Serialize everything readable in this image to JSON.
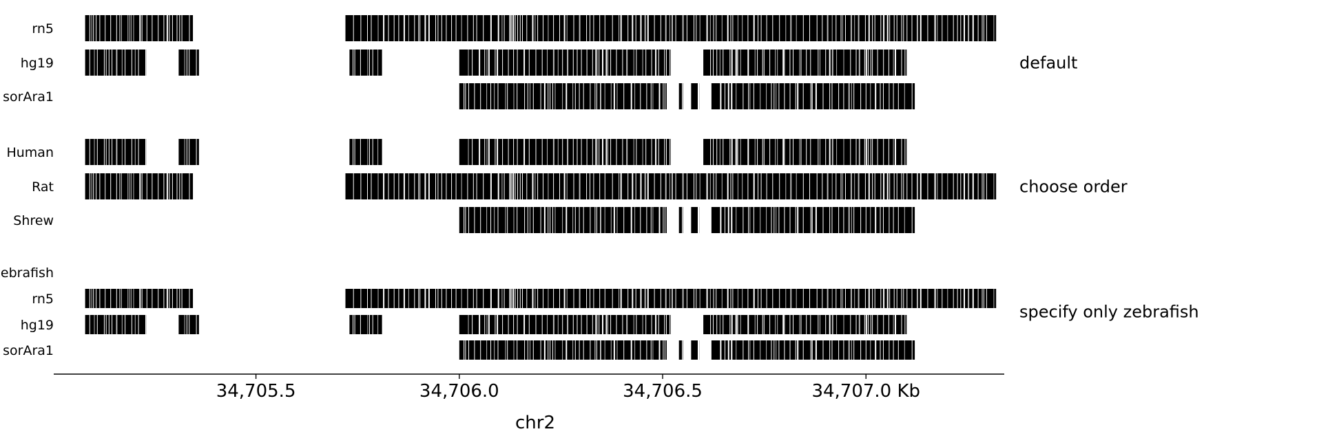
{
  "chart_data": {
    "type": "genome-alignment-tracks",
    "xlabel": "chr2",
    "x_unit": "Kb",
    "xlim": [
      34705.04,
      34707.34
    ],
    "ticks": [
      {
        "value": 34705.5,
        "label": "34,705.5"
      },
      {
        "value": 34706.0,
        "label": "34,706.0"
      },
      {
        "value": 34706.5,
        "label": "34,706.5"
      },
      {
        "value": 34707.0,
        "label": "34,707.0 Kb"
      }
    ],
    "panels": [
      {
        "title": "default",
        "tracks": [
          {
            "label": "rn5",
            "profile": "rat",
            "tall": true
          },
          {
            "label": "hg19",
            "profile": "human",
            "tall": true
          },
          {
            "label": "sorAra1",
            "profile": "shrew",
            "tall": true
          }
        ]
      },
      {
        "title": "choose order",
        "tracks": [
          {
            "label": "Human",
            "profile": "human",
            "tall": true
          },
          {
            "label": "Rat",
            "profile": "rat",
            "tall": true
          },
          {
            "label": "Shrew",
            "profile": "shrew",
            "tall": true
          }
        ]
      },
      {
        "title": "specify only zebrafish",
        "tracks": [
          {
            "label": "zebrafish",
            "profile": "empty",
            "tall": false
          },
          {
            "label": "rn5",
            "profile": "rat",
            "tall": false
          },
          {
            "label": "hg19",
            "profile": "human",
            "tall": false
          },
          {
            "label": "sorAra1",
            "profile": "shrew",
            "tall": false
          }
        ]
      }
    ],
    "alignment_regions": {
      "rat": [
        [
          34705.08,
          34705.345
        ],
        [
          34705.72,
          34707.32
        ]
      ],
      "human": [
        [
          34705.08,
          34705.23
        ],
        [
          34705.31,
          34705.36
        ],
        [
          34705.73,
          34705.81
        ],
        [
          34706.0,
          34706.52
        ],
        [
          34706.6,
          34707.1
        ]
      ],
      "shrew": [
        [
          34706.0,
          34706.51
        ],
        [
          34706.54,
          34706.55
        ],
        [
          34706.57,
          34706.59
        ],
        [
          34706.62,
          34707.12
        ]
      ],
      "empty": []
    },
    "legend": "none",
    "grid": false
  }
}
